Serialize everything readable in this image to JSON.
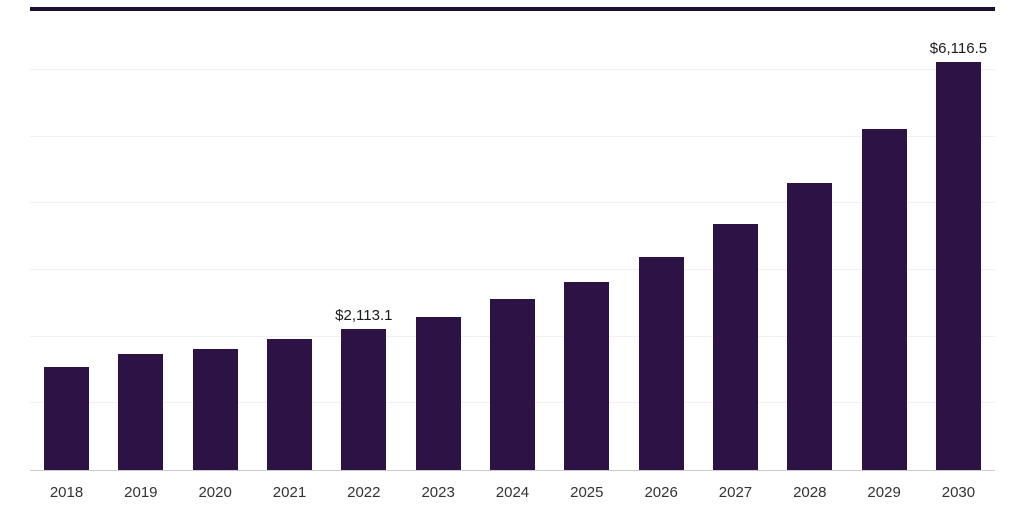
{
  "chart_data": {
    "type": "bar",
    "title": "",
    "xlabel": "",
    "ylabel": "",
    "categories": [
      "2018",
      "2019",
      "2020",
      "2021",
      "2022",
      "2023",
      "2024",
      "2025",
      "2026",
      "2027",
      "2028",
      "2029",
      "2030"
    ],
    "values": [
      1540,
      1735,
      1822,
      1960,
      2113.1,
      2290,
      2570,
      2825,
      3200,
      3690,
      4300,
      5110,
      6116.5
    ],
    "data_labels": {
      "2022": "$2,113.1",
      "2030": "$6,116.5"
    },
    "ylim": [
      0,
      6900
    ],
    "gridline_values": [
      1000,
      2000,
      3000,
      4000,
      5000,
      6000
    ],
    "grid": "horizontal",
    "legend": "none",
    "colors": {
      "bar": "#2d1245",
      "top_border": "#1e1030",
      "axis_line": "#cccccc",
      "gridline": "#f1eff4",
      "data_label_text": "#1a1a1a",
      "tick_label_text": "#333333"
    }
  }
}
